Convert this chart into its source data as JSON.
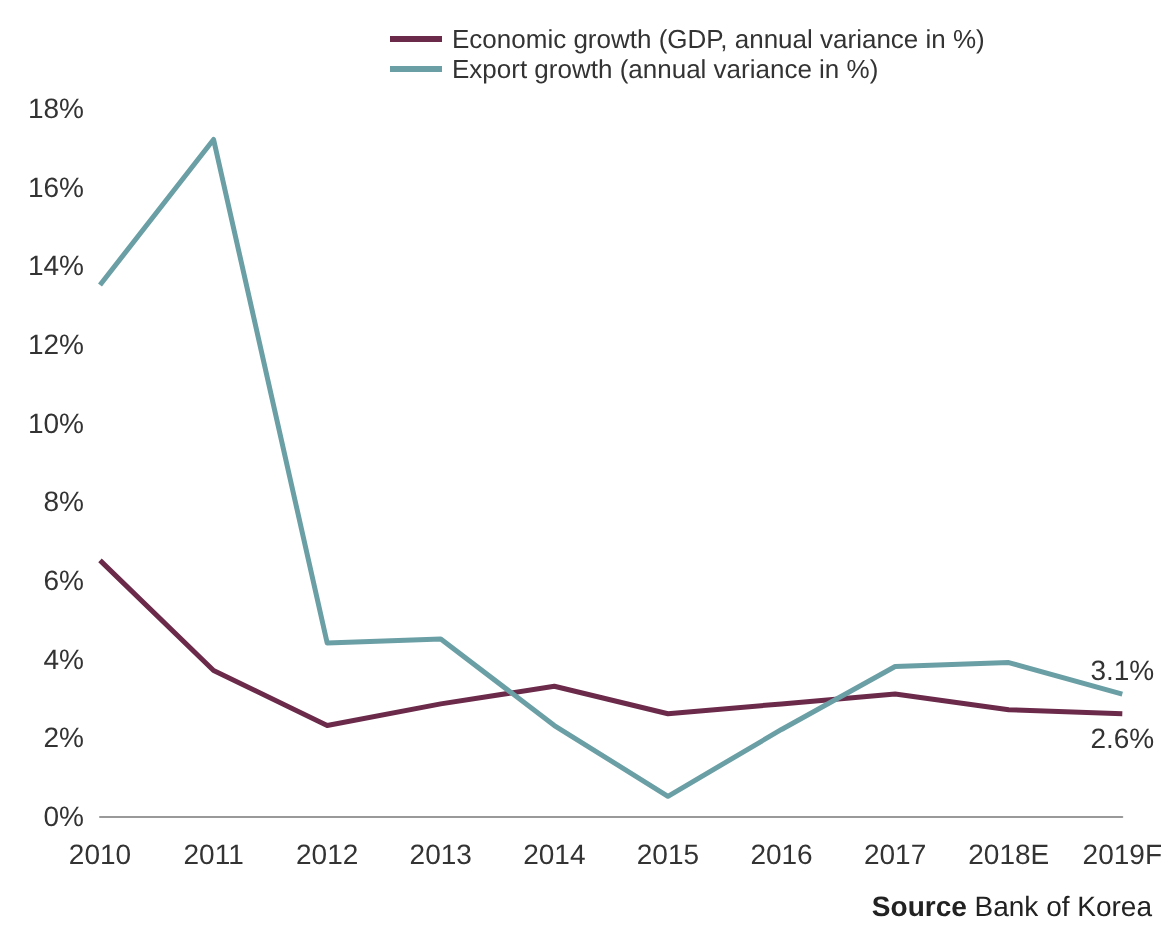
{
  "chart_data": {
    "type": "line",
    "categories": [
      "2010",
      "2011",
      "2012",
      "2013",
      "2014",
      "2015",
      "2016",
      "2017",
      "2018E",
      "2019F"
    ],
    "series": [
      {
        "name": "Economic growth (GDP, annual variance in %)",
        "color": "#6b2a4a",
        "values": [
          6.5,
          3.7,
          2.3,
          2.85,
          3.3,
          2.6,
          2.85,
          3.1,
          2.7,
          2.6
        ],
        "value_labels": [
          null,
          null,
          null,
          null,
          null,
          null,
          null,
          null,
          null,
          "2.6%"
        ]
      },
      {
        "name": "Export growth (annual variance in %)",
        "color": "#6a9fa5",
        "values": [
          13.5,
          17.2,
          4.4,
          4.5,
          2.3,
          0.5,
          2.2,
          3.8,
          3.9,
          3.1
        ],
        "value_labels": [
          null,
          null,
          null,
          null,
          null,
          null,
          null,
          null,
          null,
          "3.1%"
        ]
      }
    ],
    "ylim": [
      0,
      18
    ],
    "yticks": [
      {
        "value": 0,
        "label": "0%"
      },
      {
        "value": 2,
        "label": "2%"
      },
      {
        "value": 4,
        "label": "4%"
      },
      {
        "value": 6,
        "label": "6%"
      },
      {
        "value": 8,
        "label": "8%"
      },
      {
        "value": 10,
        "label": "10%"
      },
      {
        "value": 12,
        "label": "12%"
      },
      {
        "value": 14,
        "label": "14%"
      },
      {
        "value": 16,
        "label": "16%"
      },
      {
        "value": 18,
        "label": "18%"
      }
    ],
    "grid": false,
    "legend": "top",
    "marker": "none",
    "line_style": "solid",
    "annotations": [
      "Source Bank of Korea"
    ]
  }
}
